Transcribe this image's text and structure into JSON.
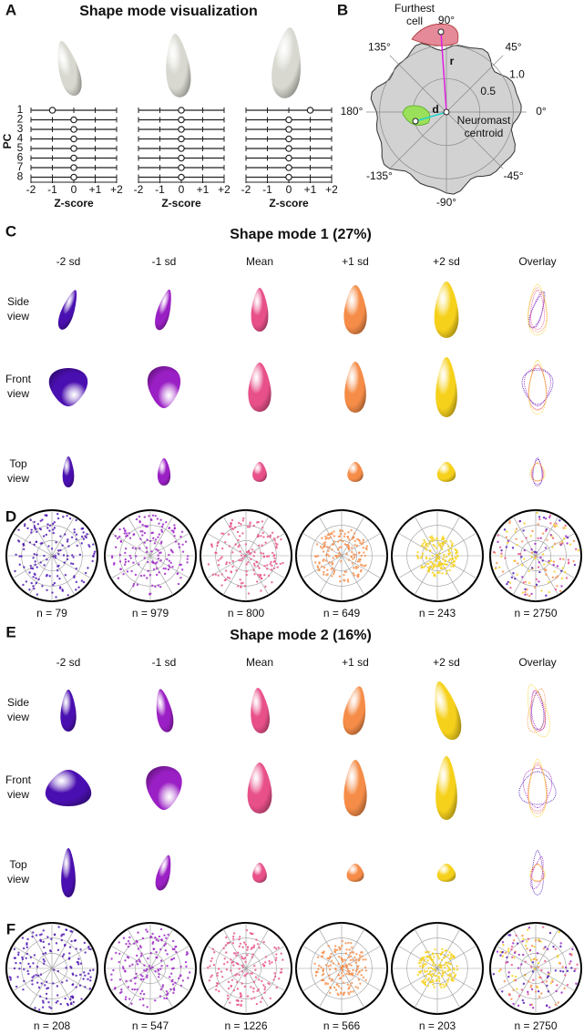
{
  "panel_a": {
    "label": "A",
    "title": "Shape mode visualization",
    "y_label": "PC",
    "x_label": "Z-score",
    "pcs": [
      "1",
      "2",
      "3",
      "4",
      "5",
      "6",
      "7",
      "8"
    ],
    "xlim": [
      -2,
      2
    ],
    "xticks": [
      -2,
      -1,
      0,
      {
        "value": 1,
        "label": "+1"
      },
      {
        "value": 2,
        "label": "+2"
      }
    ],
    "plots": [
      {
        "values": [
          -1,
          0,
          0,
          0,
          0,
          0,
          0,
          0
        ]
      },
      {
        "values": [
          0,
          0,
          0,
          0,
          0,
          0,
          0,
          0
        ]
      },
      {
        "values": [
          1,
          0,
          0,
          0,
          0,
          0,
          0,
          0
        ]
      }
    ]
  },
  "panel_b": {
    "label": "B",
    "angles": [
      {
        "value": 90,
        "label": "90°"
      },
      {
        "value": 45,
        "label": "45°"
      },
      {
        "value": 0,
        "label": "0°"
      },
      {
        "value": -45,
        "label": "-45°"
      },
      {
        "value": -90,
        "label": "-90°"
      },
      {
        "value": -135,
        "label": "-135°"
      },
      {
        "value": 180,
        "label": "180°"
      },
      {
        "value": 135,
        "label": "135°"
      }
    ],
    "rlim": [
      0,
      1.2
    ],
    "radial_ticks": [
      0.5,
      {
        "value": 1,
        "label": "1.0"
      }
    ],
    "furthest_cell": [
      "Furthest",
      "cell"
    ],
    "centroid": [
      "Neuromast",
      "centroid"
    ],
    "r": "r",
    "d": "d"
  },
  "columns": [
    "-2 sd",
    "-1 sd",
    "Mean",
    "+1 sd",
    "+2 sd",
    "Overlay"
  ],
  "rows": [
    [
      "Side",
      "view"
    ],
    [
      "Front",
      "view"
    ],
    [
      "Top",
      "view"
    ]
  ],
  "colors": [
    "#4a0fb0",
    "#9a1fc4",
    "#e8508a",
    "#f58c48",
    "#f6d11c"
  ],
  "modes": [
    {
      "shape_label": "C",
      "title": "Shape mode 1 (27%)",
      "polar_label": "D",
      "counts": [
        "n = 79",
        "n = 979",
        "n = 800",
        "n = 649",
        "n = 243",
        "n = 2750"
      ]
    },
    {
      "shape_label": "E",
      "title": "Shape mode 2 (16%)",
      "polar_label": "F",
      "counts": [
        "n = 208",
        "n = 547",
        "n = 1226",
        "n = 566",
        "n = 203",
        "n = 2750"
      ]
    }
  ]
}
